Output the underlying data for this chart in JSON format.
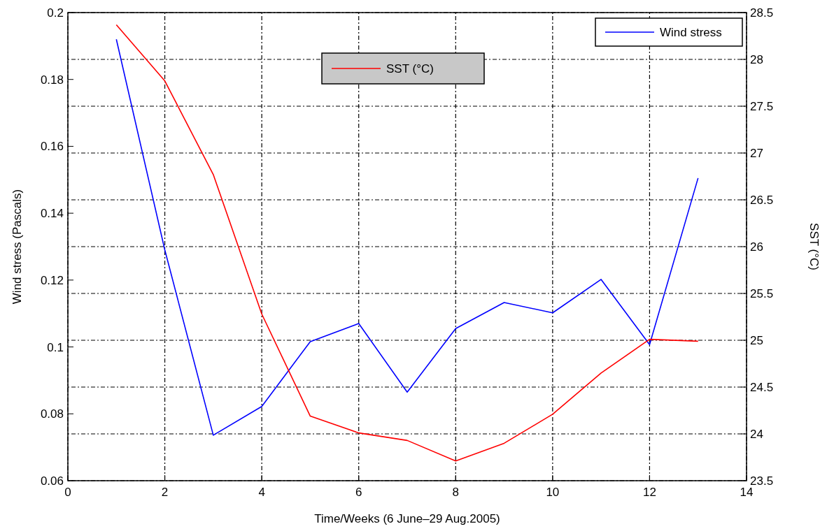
{
  "chart_data": {
    "type": "line",
    "xlabel": "Time/Weeks (6 June–29 Aug.2005)",
    "ylabel": "Wind stress (Pascals)",
    "y2label": "SST (°C)",
    "x": [
      1,
      2,
      3,
      4,
      5,
      6,
      7,
      8,
      9,
      10,
      11,
      12,
      13
    ],
    "xlim": [
      0,
      14
    ],
    "xticks": [
      0,
      2,
      4,
      6,
      8,
      10,
      12,
      14
    ],
    "ylim": [
      0.06,
      0.2
    ],
    "yticks": [
      0.06,
      0.08,
      0.1,
      0.12,
      0.14,
      0.16,
      0.18,
      0.2
    ],
    "y2lim": [
      23.5,
      28.5
    ],
    "y2ticks": [
      23.5,
      24,
      24.5,
      25,
      25.5,
      26,
      26.5,
      27,
      27.5,
      28,
      28.5
    ],
    "series": [
      {
        "name": "Wind stress",
        "color": "#0000ff",
        "values": [
          0.192,
          0.129,
          0.0736,
          0.0822,
          0.1016,
          0.107,
          0.0865,
          0.1055,
          0.1133,
          0.1102,
          0.1202,
          0.1007,
          0.1505
        ]
      },
      {
        "name": "SST (°C)",
        "color": "#ff0000",
        "axis": "y2",
        "values": [
          28.37,
          27.77,
          26.77,
          25.28,
          24.19,
          24.01,
          23.93,
          23.71,
          23.9,
          24.21,
          24.65,
          25.01,
          24.99
        ]
      }
    ],
    "grid": true,
    "legend": "top right",
    "line_style": "solid"
  }
}
